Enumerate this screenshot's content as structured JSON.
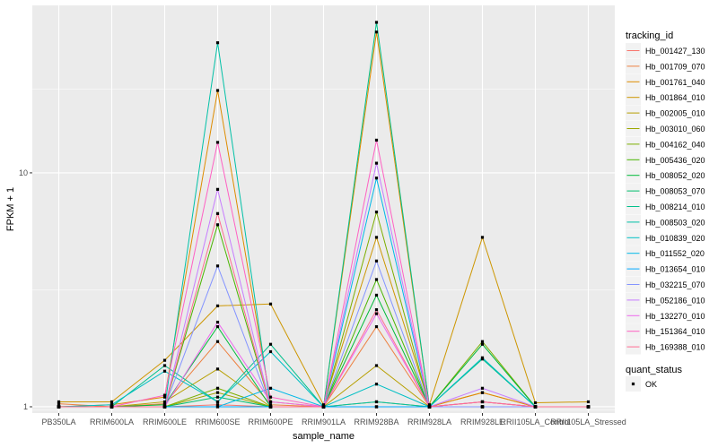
{
  "chart_data": {
    "type": "line",
    "xlabel": "sample_name",
    "ylabel": "FPKM + 1",
    "y_scale": "log10",
    "ylim": [
      0.94,
      52
    ],
    "yticks": [
      1,
      10
    ],
    "ytick_labels": [
      "1",
      "10"
    ],
    "grid": true,
    "legend_position": "right",
    "categories": [
      "PB350LA",
      "RRIM600LA",
      "RRIM600LE",
      "RRIM600SE",
      "RRIM600PE",
      "RRIM901LA",
      "RRIM928BA",
      "RRIM928LA",
      "RRIM928LE",
      "RRII105LA_Control",
      "RRII105LA_Stressed"
    ],
    "legend_title": "tracking_id",
    "series": [
      {
        "name": "Hb_001427_130",
        "color": "#F8766D",
        "values": [
          1.0,
          1.0,
          1.0,
          1.02,
          1.0,
          1.0,
          1.0,
          1.0,
          1.0,
          1.0,
          1.0
        ]
      },
      {
        "name": "Hb_001709_070",
        "color": "#ED8141",
        "values": [
          1.03,
          1.0,
          1.03,
          1.9,
          1.02,
          1.0,
          2.2,
          1.0,
          1.15,
          1.0,
          1.0
        ]
      },
      {
        "name": "Hb_001761_040",
        "color": "#DE8C00",
        "values": [
          1.0,
          1.02,
          1.1,
          22.5,
          1.05,
          1.0,
          40.0,
          1.0,
          1.15,
          1.0,
          1.0
        ]
      },
      {
        "name": "Hb_001864_010",
        "color": "#CD9600",
        "values": [
          1.05,
          1.05,
          1.58,
          2.7,
          2.75,
          1.02,
          5.3,
          1.02,
          5.3,
          1.04,
          1.05
        ]
      },
      {
        "name": "Hb_002005_010",
        "color": "#B79F00",
        "values": [
          1.0,
          1.0,
          1.05,
          1.45,
          1.0,
          1.0,
          1.5,
          1.0,
          1.0,
          1.0,
          1.0
        ]
      },
      {
        "name": "Hb_003010_060",
        "color": "#9DA700",
        "values": [
          1.0,
          1.0,
          1.0,
          1.15,
          1.0,
          1.0,
          1.05,
          1.0,
          1.0,
          1.0,
          1.0
        ]
      },
      {
        "name": "Hb_004162_040",
        "color": "#7CAE00",
        "values": [
          1.0,
          1.0,
          1.0,
          1.2,
          1.0,
          1.0,
          6.8,
          1.0,
          1.9,
          1.0,
          1.0
        ]
      },
      {
        "name": "Hb_005436_020",
        "color": "#49B500",
        "values": [
          1.0,
          1.0,
          1.0,
          6.0,
          1.0,
          1.0,
          3.5,
          1.0,
          1.05,
          1.0,
          1.0
        ]
      },
      {
        "name": "Hb_008052_020",
        "color": "#00BA38",
        "values": [
          1.0,
          1.0,
          1.02,
          2.2,
          1.0,
          1.0,
          3.0,
          1.0,
          1.85,
          1.0,
          1.0
        ]
      },
      {
        "name": "Hb_008053_070",
        "color": "#00BE6C",
        "values": [
          1.0,
          1.0,
          1.0,
          1.1,
          1.0,
          1.0,
          1.0,
          1.0,
          1.0,
          1.0,
          1.0
        ]
      },
      {
        "name": "Hb_008214_010",
        "color": "#00C08B",
        "values": [
          1.0,
          1.0,
          1.5,
          1.05,
          1.85,
          1.0,
          44.0,
          1.0,
          1.6,
          1.0,
          1.0
        ]
      },
      {
        "name": "Hb_008503_020",
        "color": "#00C1A7",
        "values": [
          1.0,
          1.0,
          1.0,
          36.0,
          1.0,
          1.0,
          1.05,
          1.0,
          1.0,
          1.0,
          1.0
        ]
      },
      {
        "name": "Hb_010839_020",
        "color": "#00BFC4",
        "values": [
          1.0,
          1.02,
          1.42,
          1.05,
          1.72,
          1.0,
          1.25,
          1.0,
          1.62,
          1.0,
          1.0
        ]
      },
      {
        "name": "Hb_011552_020",
        "color": "#00B8E7",
        "values": [
          1.0,
          1.0,
          1.0,
          1.0,
          1.2,
          1.0,
          9.5,
          1.0,
          1.0,
          1.0,
          1.0
        ]
      },
      {
        "name": "Hb_013654_010",
        "color": "#00A9FF",
        "values": [
          1.0,
          1.0,
          1.0,
          1.0,
          1.0,
          1.0,
          1.0,
          1.0,
          1.0,
          1.0,
          1.0
        ]
      },
      {
        "name": "Hb_032215_070",
        "color": "#8494FF",
        "values": [
          1.0,
          1.0,
          1.0,
          4.0,
          1.0,
          1.0,
          4.2,
          1.0,
          1.0,
          1.0,
          1.0
        ]
      },
      {
        "name": "Hb_052186_010",
        "color": "#C77CFF",
        "values": [
          1.0,
          1.0,
          1.0,
          8.5,
          1.0,
          1.0,
          11.0,
          1.0,
          1.2,
          1.0,
          1.0
        ]
      },
      {
        "name": "Hb_132270_010",
        "color": "#ED68ED",
        "values": [
          1.0,
          1.0,
          1.0,
          2.3,
          1.05,
          1.0,
          2.5,
          1.0,
          1.05,
          1.0,
          1.0
        ]
      },
      {
        "name": "Hb_151364_010",
        "color": "#FF61C3",
        "values": [
          1.0,
          1.0,
          1.12,
          13.5,
          1.1,
          1.0,
          13.8,
          1.0,
          1.05,
          1.0,
          1.0
        ]
      },
      {
        "name": "Hb_169388_010",
        "color": "#FF6C91",
        "values": [
          1.0,
          1.0,
          1.0,
          6.7,
          1.0,
          1.0,
          2.6,
          1.0,
          1.05,
          1.0,
          1.0
        ]
      }
    ],
    "shape_legend": {
      "title": "quant_status",
      "entries": [
        {
          "label": "OK",
          "shape": "square-point"
        }
      ]
    }
  }
}
